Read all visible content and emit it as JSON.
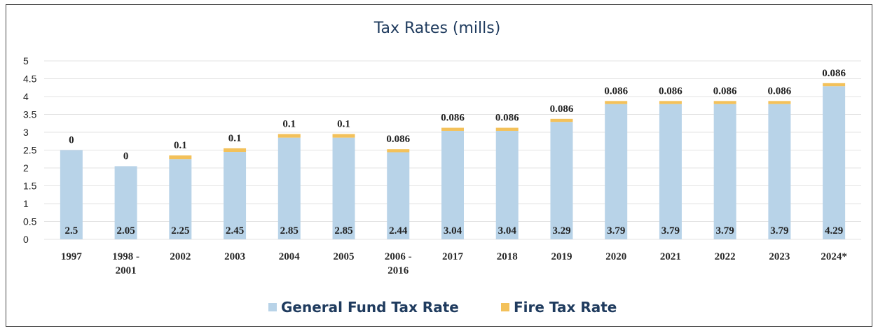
{
  "chart_data": {
    "type": "bar",
    "stacked": true,
    "title": "Tax Rates (mills)",
    "xlabel": "",
    "ylabel": "",
    "ylim": [
      0,
      5
    ],
    "yticks": [
      "0",
      "0.5",
      "1",
      "1.5",
      "2",
      "2.5",
      "3",
      "3.5",
      "4",
      "4.5",
      "5"
    ],
    "grid": true,
    "legend": "bottom",
    "categories": [
      [
        "1997"
      ],
      [
        "1998 -",
        "2001"
      ],
      [
        "2002"
      ],
      [
        "2003"
      ],
      [
        "2004"
      ],
      [
        "2005"
      ],
      [
        "2006 -",
        "2016"
      ],
      [
        "2017"
      ],
      [
        "2018"
      ],
      [
        "2019"
      ],
      [
        "2020"
      ],
      [
        "2021"
      ],
      [
        "2022"
      ],
      [
        "2023"
      ],
      [
        "2024*"
      ]
    ],
    "series": [
      {
        "name": "General Fund Tax Rate",
        "color": "#b8d3e8",
        "values": [
          2.5,
          2.05,
          2.25,
          2.45,
          2.85,
          2.85,
          2.44,
          3.04,
          3.04,
          3.29,
          3.79,
          3.79,
          3.79,
          3.79,
          4.29
        ],
        "labels": [
          "2.5",
          "2.05",
          "2.25",
          "2.45",
          "2.85",
          "2.85",
          "2.44",
          "3.04",
          "3.04",
          "3.29",
          "3.79",
          "3.79",
          "3.79",
          "3.79",
          "4.29"
        ]
      },
      {
        "name": "Fire Tax Rate",
        "color": "#f3c15a",
        "values": [
          0,
          0,
          0.1,
          0.1,
          0.1,
          0.1,
          0.086,
          0.086,
          0.086,
          0.086,
          0.086,
          0.086,
          0.086,
          0.086,
          0.086
        ],
        "labels": [
          "0",
          "0",
          "0.1",
          "0.1",
          "0.1",
          "0.1",
          "0.086",
          "0.086",
          "0.086",
          "0.086",
          "0.086",
          "0.086",
          "0.086",
          "0.086",
          "0.086"
        ]
      }
    ]
  }
}
